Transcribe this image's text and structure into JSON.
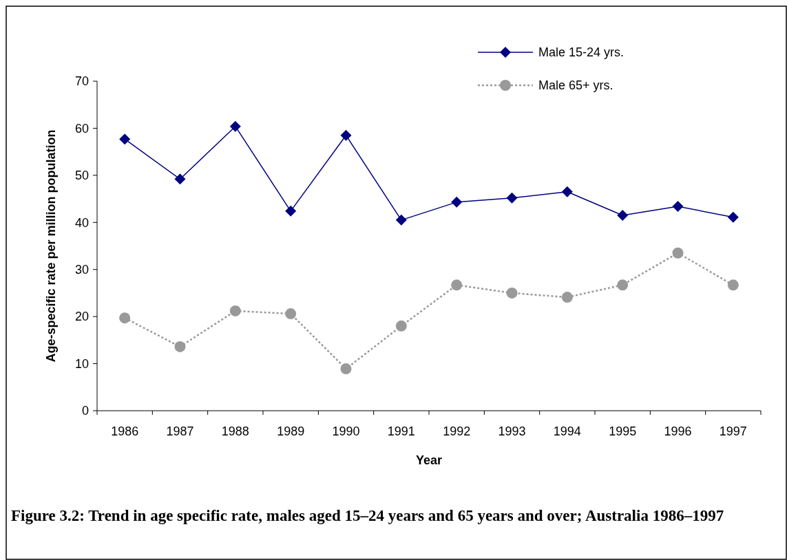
{
  "chart_data": {
    "type": "line",
    "categories": [
      "1986",
      "1987",
      "1988",
      "1989",
      "1990",
      "1991",
      "1992",
      "1993",
      "1994",
      "1995",
      "1996",
      "1997"
    ],
    "xlabel": "Year",
    "ylabel": "Age-specific rate per million population",
    "ylim": [
      0,
      70
    ],
    "yticks": [
      0,
      10,
      20,
      30,
      40,
      50,
      60,
      70
    ],
    "grid": false,
    "legend": "top right",
    "series": [
      {
        "name": "Male 15-24 yrs.",
        "color": "#000080",
        "marker": "diamond",
        "line_style": "solid",
        "values": [
          57.7,
          49.2,
          60.4,
          42.4,
          58.5,
          40.5,
          44.3,
          45.2,
          46.5,
          41.5,
          43.4,
          41.1
        ]
      },
      {
        "name": "Male 65+ yrs.",
        "color": "#999999",
        "marker": "circle",
        "line_style": "dotted",
        "values": [
          19.7,
          13.6,
          21.2,
          20.6,
          8.9,
          18.0,
          26.7,
          25.0,
          24.1,
          26.7,
          33.5,
          26.7
        ]
      }
    ],
    "annotations": [
      "Figure 3.2: Trend in age specific rate, males aged 15–24 years and 65 years and over; Australia 1986–1997"
    ]
  }
}
